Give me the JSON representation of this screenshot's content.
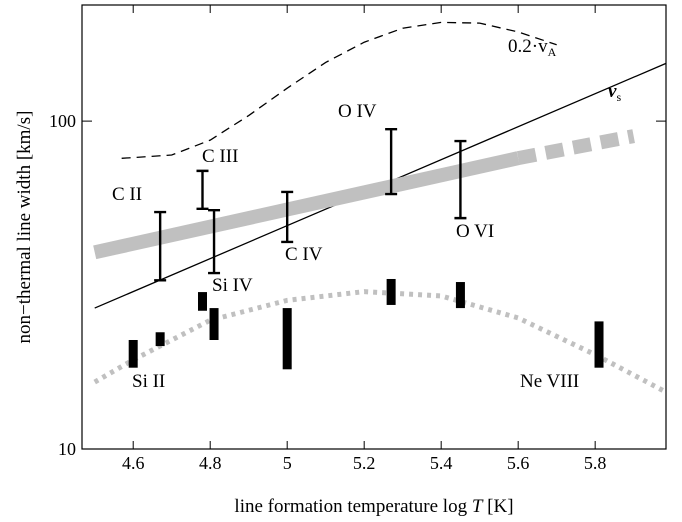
{
  "chart_data": {
    "type": "line",
    "ylabel": "non−thermal line width  [km/s]",
    "xlabel": [
      "line formation temperature  log ",
      "T",
      " [K]"
    ],
    "xlim": [
      4.467,
      5.984
    ],
    "ylim": [
      10,
      226
    ],
    "log_y": true,
    "xticks": [
      4.6,
      4.8,
      5.0,
      5.2,
      5.4,
      5.6,
      5.8
    ],
    "yticks": [
      10,
      100
    ],
    "series": [
      {
        "label": {
          "main": "0.2·v",
          "sub": "A"
        },
        "color": "#000000",
        "style": "dashed",
        "x": [
          4.57,
          4.7,
          4.8,
          4.9,
          5.0,
          5.1,
          5.2,
          5.3,
          5.4,
          5.5,
          5.6,
          5.7
        ],
        "values": [
          77,
          78.8,
          87.5,
          104,
          126,
          151,
          174,
          192,
          200,
          199,
          187,
          171
        ]
      },
      {
        "label": {
          "main": "v",
          "sub": "s"
        },
        "color": "#000000",
        "style": "solid",
        "x": [
          4.5,
          5.984
        ],
        "values": [
          26.9,
          150
        ]
      },
      {
        "color": "#c0c0c0",
        "style": "band",
        "x": [
          4.5,
          5.6
        ],
        "values": [
          39.8,
          77.1
        ]
      },
      {
        "color": "#c0c0c0",
        "style": "band-dashed",
        "x": [
          5.6,
          5.9
        ],
        "values": [
          77.1,
          90
        ]
      },
      {
        "color": "#c0c0c0",
        "style": "dotted",
        "x": [
          4.5,
          4.6,
          4.8,
          5.0,
          5.2,
          5.4,
          5.6,
          5.8,
          5.98
        ],
        "values": [
          16,
          18.7,
          24.7,
          28.4,
          30.2,
          29.3,
          25.1,
          19.4,
          15
        ]
      }
    ],
    "error_bars": [
      {
        "x": 4.67,
        "low": 32.7,
        "high": 52.8
      },
      {
        "x": 4.78,
        "low": 54,
        "high": 70.5
      },
      {
        "x": 4.81,
        "low": 34.4,
        "high": 53.5
      },
      {
        "x": 5.0,
        "low": 42.8,
        "high": 60.8
      },
      {
        "x": 5.27,
        "low": 59.9,
        "high": 94.5
      },
      {
        "x": 5.45,
        "low": 50.6,
        "high": 86.9
      }
    ],
    "ranges": [
      {
        "x": 4.6,
        "low": 17.7,
        "high": 21.5
      },
      {
        "x": 4.67,
        "low": 20.6,
        "high": 22.7
      },
      {
        "x": 4.78,
        "low": 26.4,
        "high": 30.1
      },
      {
        "x": 4.81,
        "low": 21.5,
        "high": 26.9
      },
      {
        "x": 5.0,
        "low": 17.5,
        "high": 26.9
      },
      {
        "x": 5.27,
        "low": 27.5,
        "high": 33.0
      },
      {
        "x": 5.45,
        "low": 26.9,
        "high": 32.3
      },
      {
        "x": 5.81,
        "low": 17.7,
        "high": 24.5
      }
    ],
    "annotations": [
      "C II",
      "C III",
      "Si IV",
      "C IV",
      "O IV",
      "O VI",
      "Si II",
      "Ne VIII"
    ]
  }
}
